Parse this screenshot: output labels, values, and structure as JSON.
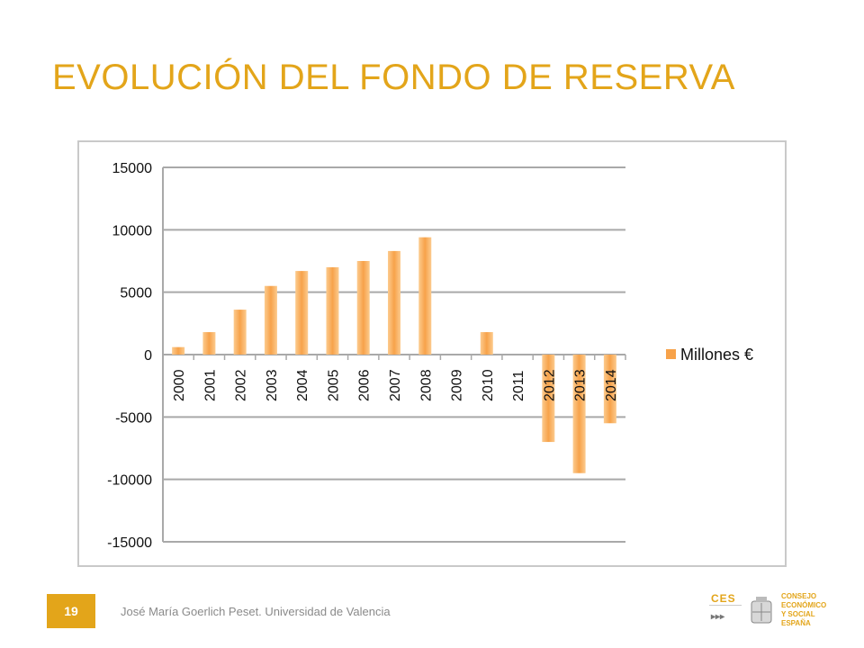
{
  "slide": {
    "title": "EVOLUCIÓN DEL FONDO DE RESERVA",
    "page_number": "19",
    "footer": "José María Goerlich Peset. Universidad de Valencia"
  },
  "logo": {
    "acronym": "CES",
    "lines": [
      "CONSEJO",
      "ECONÓMICO",
      "Y SOCIAL",
      "ESPAÑA"
    ]
  },
  "colors": {
    "accent": "#e3a51a",
    "bar_light": "#fccb8e",
    "bar_dark": "#f7a24a",
    "grid": "#a9a9a9"
  },
  "chart_data": {
    "type": "bar",
    "categories": [
      "2000",
      "2001",
      "2002",
      "2003",
      "2004",
      "2005",
      "2006",
      "2007",
      "2008",
      "2009",
      "2010",
      "2011",
      "2012",
      "2013",
      "2014"
    ],
    "series": [
      {
        "name": "Millones €",
        "values": [
          600,
          1800,
          3600,
          5500,
          6700,
          7000,
          7500,
          8300,
          9400,
          0,
          1800,
          0,
          -7000,
          -9500,
          -5500
        ]
      }
    ],
    "yticks": [
      15000,
      10000,
      5000,
      0,
      -5000,
      -10000,
      -15000
    ],
    "ylim": [
      -15000,
      15000
    ],
    "grid": true,
    "legend_position": "right"
  }
}
